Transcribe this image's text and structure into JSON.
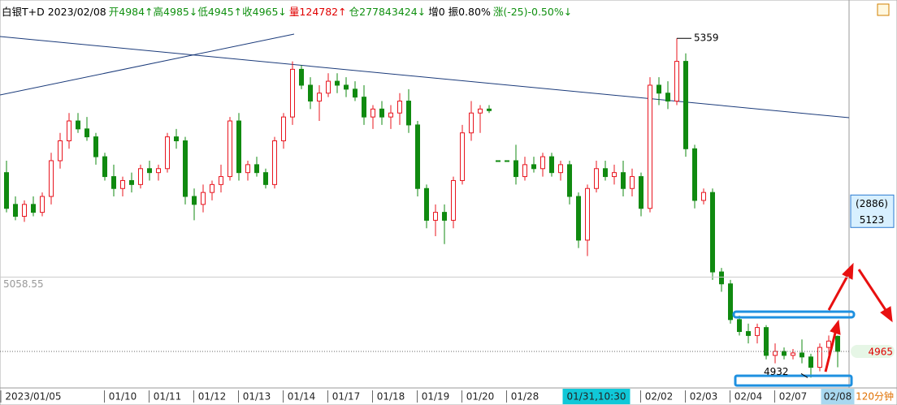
{
  "header": {
    "title": "白银T+D 2023/02/08",
    "fields": [
      {
        "text": "开4984↑高4985↓低4945↑收4965↓",
        "color": "#109010"
      },
      {
        "text": "量124782↑",
        "color": "#e00000"
      },
      {
        "text": "仓277843424↓",
        "color": "#109010"
      },
      {
        "text": "增0 振0.80%",
        "color": "#000000"
      },
      {
        "text": "涨(-25)-0.50%↓",
        "color": "#109010"
      }
    ]
  },
  "chart_data": {
    "type": "candlestick",
    "period": "120分钟",
    "up_color": "#e8141e",
    "down_color": "#108a10",
    "ylim": [
      4919,
      5397
    ],
    "categories": [
      null,
      null,
      null,
      "2023/01/05",
      null,
      null,
      null,
      null,
      null,
      null,
      null,
      null,
      null,
      "01/10",
      null,
      null,
      null,
      null,
      "01/11",
      null,
      null,
      null,
      null,
      "01/12",
      null,
      null,
      null,
      null,
      "01/13",
      null,
      null,
      null,
      null,
      "01/14",
      null,
      null,
      null,
      null,
      "01/17",
      null,
      null,
      null,
      null,
      "01/18",
      null,
      null,
      null,
      null,
      "01/19",
      null,
      null,
      null,
      null,
      "01/20",
      null,
      null,
      null,
      null,
      "01/28",
      null,
      null,
      null,
      null,
      null,
      null,
      null,
      "01/31,10:30",
      null,
      null,
      null,
      null,
      null,
      null,
      "02/02",
      null,
      null,
      null,
      null,
      "02/03",
      null,
      null,
      null,
      null,
      "02/04",
      null,
      null,
      null,
      null,
      "02/07",
      null,
      null,
      null,
      null,
      "02/08"
    ],
    "selected_category": 66,
    "ohlc": [
      [
        5190,
        5205,
        5140,
        5145
      ],
      [
        5150,
        5160,
        5130,
        5135
      ],
      [
        5135,
        5155,
        5128,
        5150
      ],
      [
        5150,
        5160,
        5135,
        5140
      ],
      [
        5140,
        5165,
        5135,
        5160
      ],
      [
        5160,
        5215,
        5150,
        5205
      ],
      [
        5205,
        5240,
        5195,
        5230
      ],
      [
        5230,
        5265,
        5220,
        5255
      ],
      [
        5255,
        5265,
        5240,
        5245
      ],
      [
        5245,
        5260,
        5230,
        5235
      ],
      [
        5235,
        5240,
        5200,
        5210
      ],
      [
        5210,
        5215,
        5180,
        5185
      ],
      [
        5185,
        5200,
        5160,
        5170
      ],
      [
        5170,
        5185,
        5160,
        5180
      ],
      [
        5180,
        5190,
        5165,
        5175
      ],
      [
        5175,
        5200,
        5170,
        5195
      ],
      [
        5195,
        5205,
        5180,
        5190
      ],
      [
        5190,
        5200,
        5180,
        5195
      ],
      [
        5195,
        5240,
        5190,
        5235
      ],
      [
        5235,
        5245,
        5220,
        5230
      ],
      [
        5230,
        5235,
        5150,
        5160
      ],
      [
        5160,
        5170,
        5130,
        5150
      ],
      [
        5150,
        5175,
        5140,
        5165
      ],
      [
        5165,
        5180,
        5155,
        5175
      ],
      [
        5175,
        5200,
        5165,
        5185
      ],
      [
        5185,
        5260,
        5180,
        5255
      ],
      [
        5255,
        5265,
        5180,
        5190
      ],
      [
        5190,
        5205,
        5180,
        5200
      ],
      [
        5200,
        5210,
        5185,
        5190
      ],
      [
        5190,
        5195,
        5170,
        5175
      ],
      [
        5175,
        5235,
        5170,
        5230
      ],
      [
        5230,
        5265,
        5220,
        5260
      ],
      [
        5260,
        5330,
        5250,
        5320
      ],
      [
        5320,
        5325,
        5295,
        5300
      ],
      [
        5300,
        5310,
        5270,
        5280
      ],
      [
        5280,
        5300,
        5255,
        5290
      ],
      [
        5290,
        5315,
        5285,
        5305
      ],
      [
        5305,
        5315,
        5290,
        5300
      ],
      [
        5300,
        5310,
        5285,
        5295
      ],
      [
        5295,
        5305,
        5280,
        5285
      ],
      [
        5285,
        5300,
        5250,
        5260
      ],
      [
        5260,
        5275,
        5245,
        5270
      ],
      [
        5270,
        5280,
        5250,
        5260
      ],
      [
        5260,
        5275,
        5245,
        5265
      ],
      [
        5265,
        5290,
        5250,
        5280
      ],
      [
        5280,
        5295,
        5240,
        5250
      ],
      [
        5250,
        5255,
        5160,
        5170
      ],
      [
        5170,
        5175,
        5120,
        5130
      ],
      [
        5130,
        5150,
        5110,
        5140
      ],
      [
        5140,
        5150,
        5100,
        5130
      ],
      [
        5130,
        5185,
        5120,
        5180
      ],
      [
        5180,
        5250,
        5175,
        5240
      ],
      [
        5240,
        5280,
        5230,
        5265
      ],
      [
        5265,
        5275,
        5240,
        5270
      ],
      [
        5270,
        5275,
        5265,
        5268
      ],
      [
        5205,
        5205,
        5205,
        5205
      ],
      [
        5205,
        5205,
        5205,
        5205
      ],
      [
        5205,
        5225,
        5175,
        5185
      ],
      [
        5185,
        5210,
        5180,
        5200
      ],
      [
        5200,
        5210,
        5190,
        5195
      ],
      [
        5195,
        5215,
        5185,
        5210
      ],
      [
        5210,
        5215,
        5185,
        5190
      ],
      [
        5190,
        5205,
        5180,
        5200
      ],
      [
        5200,
        5205,
        5150,
        5160
      ],
      [
        5160,
        5165,
        5095,
        5105
      ],
      [
        5105,
        5175,
        5085,
        5170
      ],
      [
        5170,
        5205,
        5165,
        5195
      ],
      [
        5195,
        5205,
        5180,
        5185
      ],
      [
        5185,
        5200,
        5175,
        5190
      ],
      [
        5190,
        5205,
        5160,
        5170
      ],
      [
        5170,
        5195,
        5160,
        5185
      ],
      [
        5185,
        5190,
        5135,
        5145
      ],
      [
        5145,
        5310,
        5140,
        5300
      ],
      [
        5300,
        5310,
        5275,
        5290
      ],
      [
        5290,
        5305,
        5270,
        5280
      ],
      [
        5280,
        5359,
        5275,
        5330
      ],
      [
        5330,
        5340,
        5210,
        5220
      ],
      [
        5220,
        5225,
        5145,
        5155
      ],
      [
        5155,
        5170,
        5150,
        5165
      ],
      [
        5165,
        5170,
        5055,
        5065
      ],
      [
        5065,
        5070,
        5040,
        5050
      ],
      [
        5050,
        5055,
        5000,
        5005
      ],
      [
        5005,
        5010,
        4985,
        4990
      ],
      [
        4990,
        5000,
        4975,
        4985
      ],
      [
        4985,
        5000,
        4975,
        4995
      ],
      [
        4995,
        4998,
        4955,
        4960
      ],
      [
        4960,
        4975,
        4950,
        4965
      ],
      [
        4965,
        4970,
        4955,
        4960
      ],
      [
        4960,
        4968,
        4955,
        4963
      ],
      [
        4963,
        4980,
        4950,
        4958
      ],
      [
        4958,
        4962,
        4932,
        4945
      ],
      [
        4945,
        4975,
        4940,
        4970
      ],
      [
        4970,
        4985,
        4960,
        4978
      ],
      [
        4984,
        4985,
        4945,
        4965
      ]
    ],
    "high_label": {
      "value": 5359,
      "label": "5359"
    },
    "low_label": {
      "value": 4932,
      "label": "4932"
    },
    "ruler": {
      "value": 5058.55,
      "label": "5058.55"
    },
    "last": {
      "value": 4965,
      "label": "4965"
    },
    "cursor_box": {
      "count": "(2886)",
      "value": 5123,
      "label": "5123"
    }
  }
}
